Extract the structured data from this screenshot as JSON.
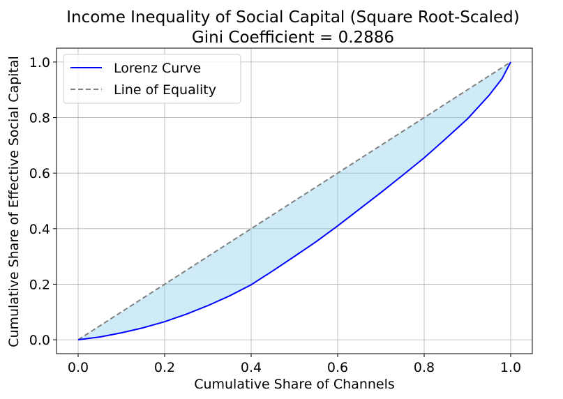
{
  "chart_data": {
    "type": "line",
    "title": "Income Inequality of Social Capital (Square Root-Scaled)",
    "subtitle": "Gini Coefficient = 0.2886",
    "xlabel": "Cumulative Share of Channels",
    "ylabel": "Cumulative Share of Effective Social Capital",
    "xlim": [
      -0.05,
      1.05
    ],
    "ylim": [
      -0.05,
      1.05
    ],
    "xticks": [
      "0.0",
      "0.2",
      "0.4",
      "0.6",
      "0.8",
      "1.0"
    ],
    "yticks": [
      "0.0",
      "0.2",
      "0.4",
      "0.6",
      "0.8",
      "1.0"
    ],
    "grid": true,
    "legend_position": "upper-left",
    "series": [
      {
        "name": "Lorenz Curve",
        "color": "#0000ff",
        "style": "solid",
        "x": [
          0.0,
          0.05,
          0.1,
          0.15,
          0.2,
          0.25,
          0.3,
          0.35,
          0.4,
          0.45,
          0.5,
          0.55,
          0.6,
          0.65,
          0.7,
          0.75,
          0.8,
          0.85,
          0.9,
          0.95,
          0.98,
          1.0
        ],
        "y": [
          0.0,
          0.01,
          0.025,
          0.043,
          0.065,
          0.092,
          0.123,
          0.158,
          0.198,
          0.248,
          0.3,
          0.353,
          0.41,
          0.47,
          0.53,
          0.592,
          0.655,
          0.724,
          0.795,
          0.88,
          0.94,
          1.0
        ]
      },
      {
        "name": "Line of Equality",
        "color": "#808080",
        "style": "dashed",
        "x": [
          0.0,
          1.0
        ],
        "y": [
          0.0,
          1.0
        ]
      }
    ],
    "fill_between": {
      "color": "#87ceeb",
      "opacity": 0.4
    }
  }
}
